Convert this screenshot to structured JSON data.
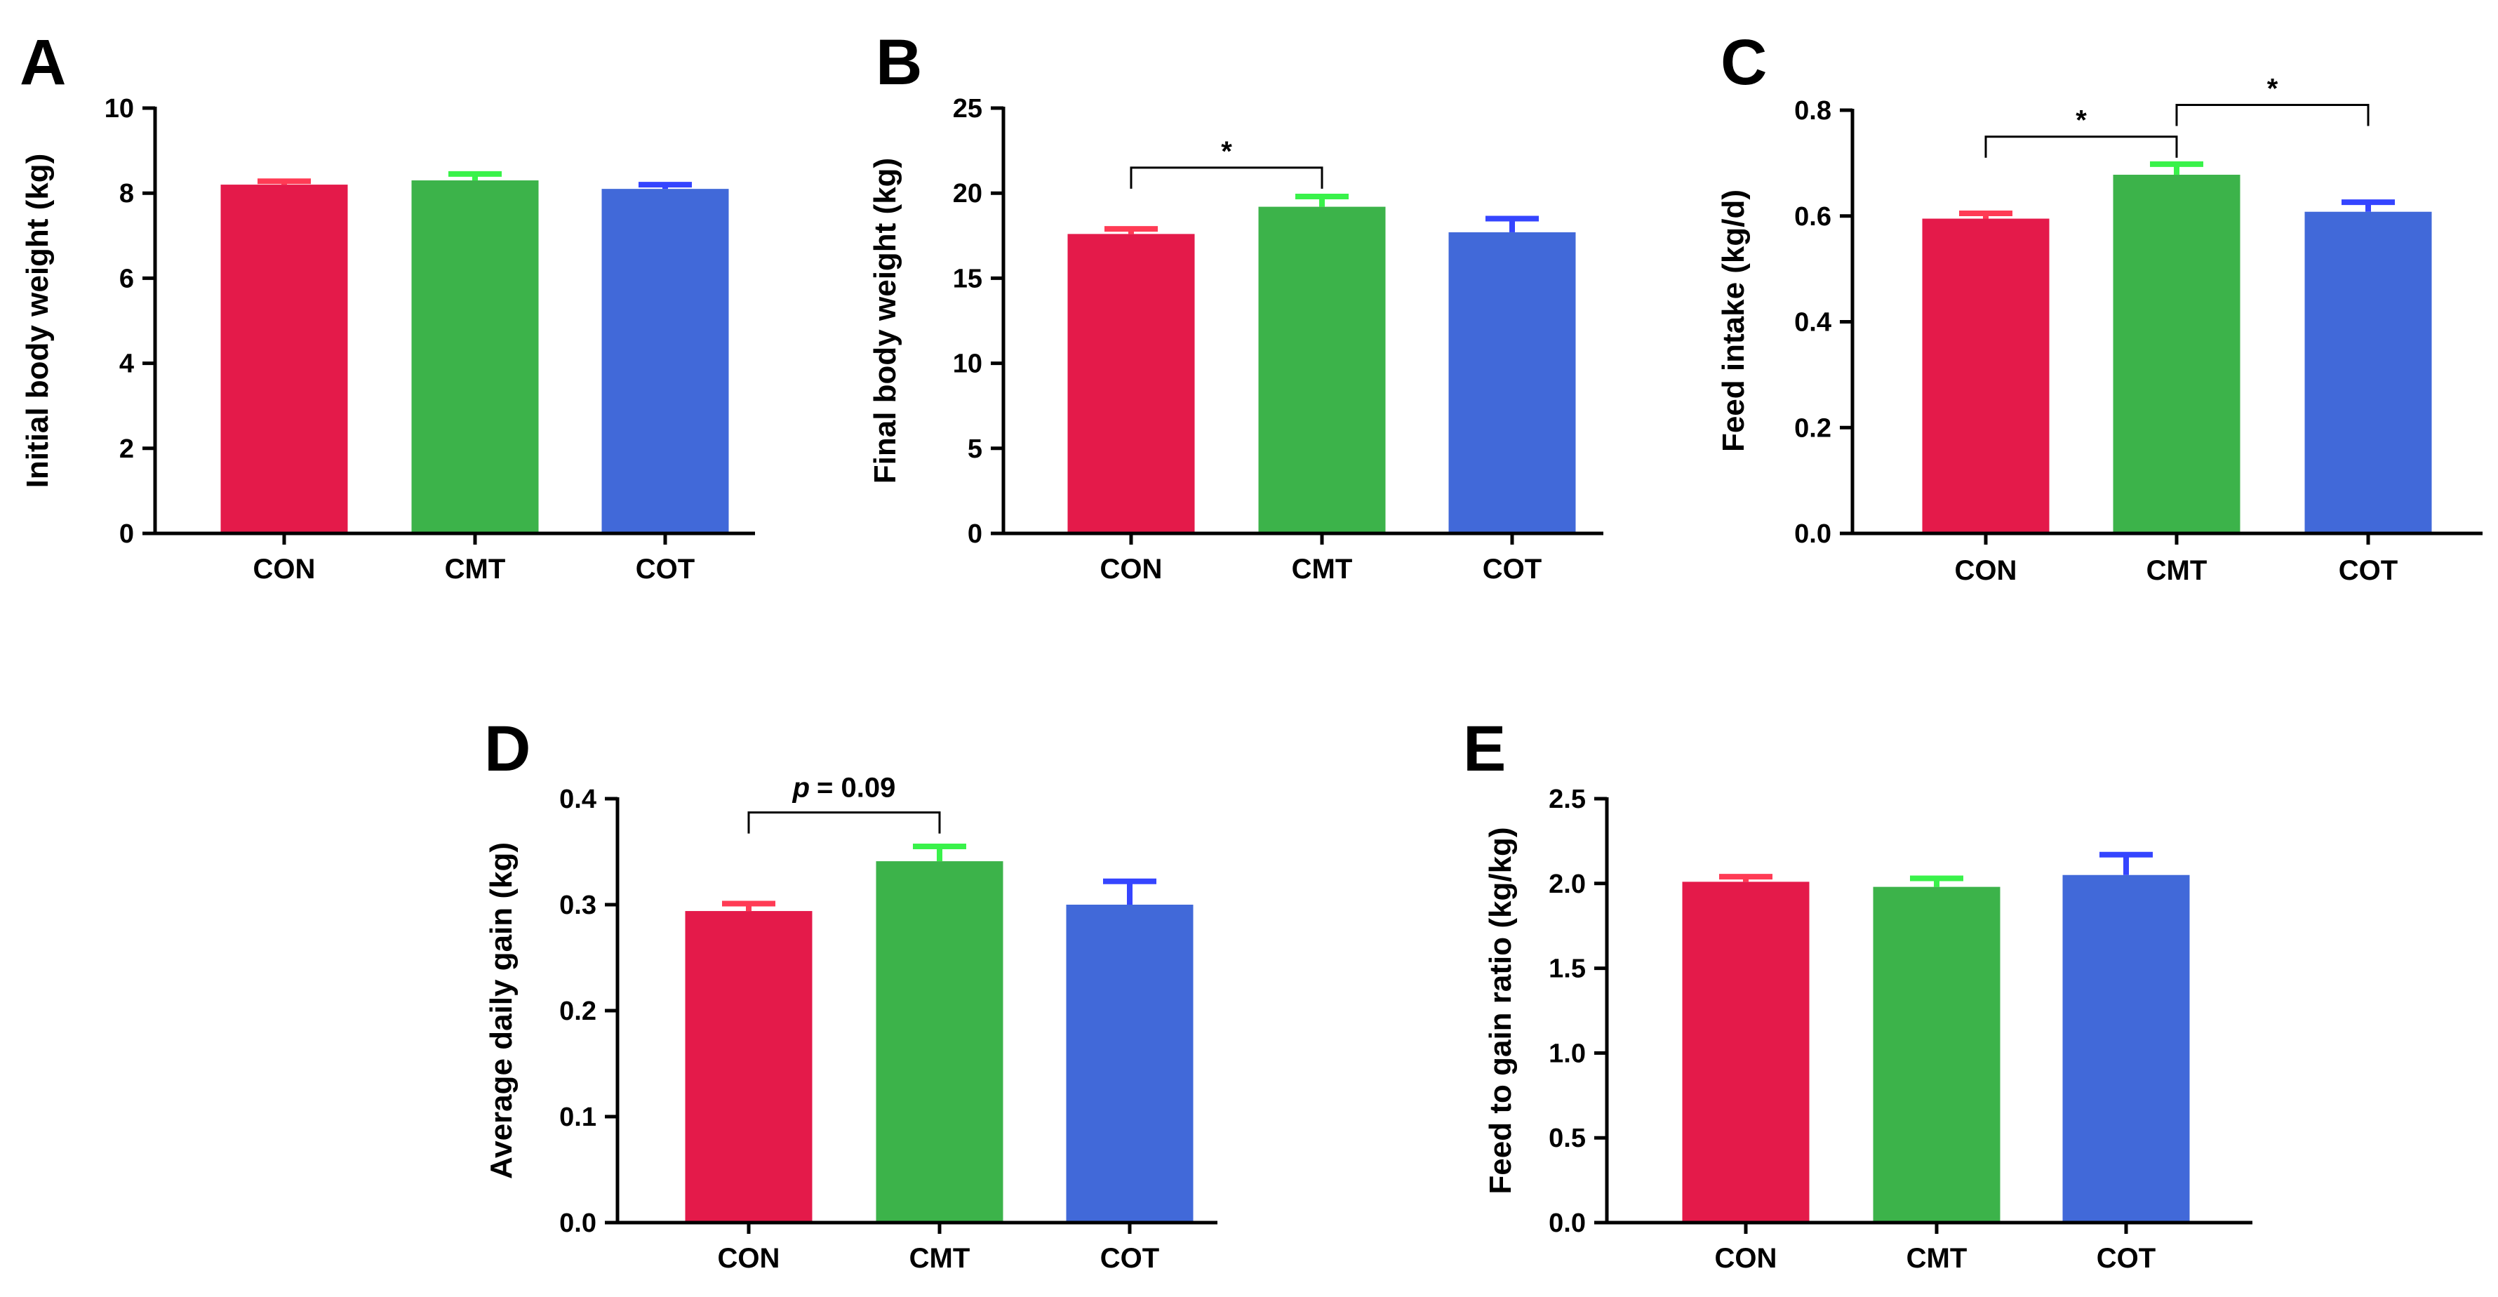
{
  "chart_data": [
    {
      "panel": "A",
      "type": "bar",
      "ylabel": "Initial body weight (kg)",
      "categories": [
        "CON",
        "CMT",
        "COT"
      ],
      "values": [
        8.2,
        8.3,
        8.1
      ],
      "errors": [
        0.08,
        0.15,
        0.1
      ],
      "ylim": [
        0,
        10
      ],
      "yticks": [
        0,
        2,
        4,
        6,
        8,
        10
      ],
      "tick_labels": [
        "0",
        "2",
        "4",
        "6",
        "8",
        "10"
      ],
      "annotations": []
    },
    {
      "panel": "B",
      "type": "bar",
      "ylabel": "Final body weight (kg)",
      "categories": [
        "CON",
        "CMT",
        "COT"
      ],
      "values": [
        17.6,
        19.2,
        17.7
      ],
      "errors": [
        0.3,
        0.6,
        0.8
      ],
      "ylim": [
        0,
        25
      ],
      "yticks": [
        0,
        5,
        10,
        15,
        20,
        25
      ],
      "tick_labels": [
        "0",
        "5",
        "10",
        "15",
        "20",
        "25"
      ],
      "annotations": [
        {
          "from": 0,
          "to": 1,
          "text": "*",
          "y": 21.5
        }
      ]
    },
    {
      "panel": "C",
      "type": "bar",
      "ylabel": "Feed intake (kg/d)",
      "categories": [
        "CON",
        "CMT",
        "COT"
      ],
      "values": [
        0.595,
        0.678,
        0.608
      ],
      "errors": [
        0.01,
        0.02,
        0.018
      ],
      "ylim": [
        0,
        0.8
      ],
      "yticks": [
        0,
        0.2,
        0.4,
        0.6,
        0.8
      ],
      "tick_labels": [
        "0.0",
        "0.2",
        "0.4",
        "0.6",
        "0.8"
      ],
      "annotations": [
        {
          "from": 0,
          "to": 1,
          "text": "*",
          "y": 0.75
        },
        {
          "from": 1,
          "to": 2,
          "text": "*",
          "y": 0.81
        }
      ]
    },
    {
      "panel": "D",
      "type": "bar",
      "ylabel": "Average daily gain (kg)",
      "categories": [
        "CON",
        "CMT",
        "COT"
      ],
      "values": [
        0.294,
        0.341,
        0.3
      ],
      "errors": [
        0.007,
        0.014,
        0.022
      ],
      "ylim": [
        0,
        0.4
      ],
      "yticks": [
        0,
        0.1,
        0.2,
        0.3,
        0.4
      ],
      "tick_labels": [
        "0.0",
        "0.1",
        "0.2",
        "0.3",
        "0.4"
      ],
      "annotations": [
        {
          "from": 0,
          "to": 1,
          "text": "= 0.09",
          "italic_prefix": "p",
          "y": 0.387
        }
      ]
    },
    {
      "panel": "E",
      "type": "bar",
      "ylabel": "Feed to gain ratio (kg/kg)",
      "categories": [
        "CON",
        "CMT",
        "COT"
      ],
      "values": [
        2.01,
        1.98,
        2.05
      ],
      "errors": [
        0.03,
        0.05,
        0.12
      ],
      "ylim": [
        0,
        2.5
      ],
      "yticks": [
        0,
        0.5,
        1.0,
        1.5,
        2.0,
        2.5
      ],
      "tick_labels": [
        "0.0",
        "0.5",
        "1.0",
        "1.5",
        "2.0",
        "2.5"
      ],
      "annotations": []
    }
  ],
  "colors": {
    "bars": [
      "#E41A4A",
      "#3CB34A",
      "#4169D9"
    ],
    "error_bars": [
      "#FF3B55",
      "#39F24A",
      "#3545FF"
    ]
  }
}
